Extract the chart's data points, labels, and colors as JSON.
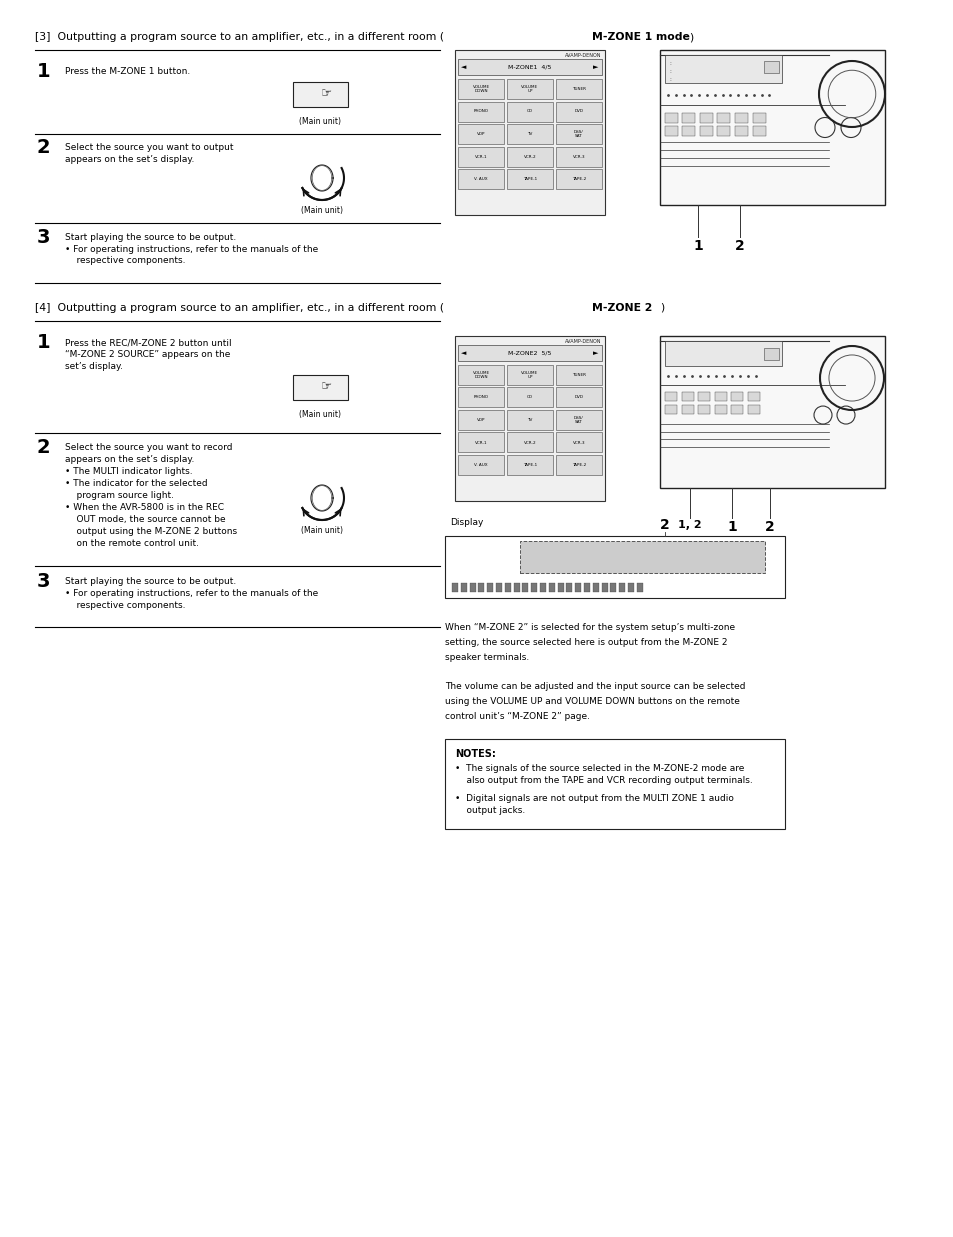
{
  "page_bg": "#ffffff",
  "page_width": 9.54,
  "page_height": 12.37,
  "section1_heading_bold": "[3]  Outputting a program source to an amplifier, etc., in a different room (",
  "section1_heading_part2": "M-ZONE 1 mode",
  "section1_heading_part3": ")",
  "section1_heading": "[3]  Outputting a program source to an amplifier, etc., in a different room (M-ZONE 1 mode)",
  "section2_heading": "[4]  Outputting a program source to an amplifier, etc., in a different room (M-ZONE 2)",
  "s1_step1_num": "1",
  "s1_step1_text": "Press the M-ZONE 1 button.",
  "s1_step1_sub": "(Main unit)",
  "s1_step2_num": "2",
  "s1_step2_line1": "Select the source you want to output",
  "s1_step2_line2": "appears on the set’s display.",
  "s1_step2_sub": "(Main unit)",
  "s1_step3_num": "3",
  "s1_step3_line1": "Start playing the source to be output.",
  "s1_step3_bullet": "• For operating instructions, refer to the manuals of the",
  "s1_step3_bullet2": "    respective components.",
  "s2_step1_num": "1",
  "s2_step1_line1": "Press the REC/M-ZONE 2 button until",
  "s2_step1_line2": "“M-ZONE 2 SOURCE” appears on the",
  "s2_step1_line3": "set’s display.",
  "s2_step1_sub": "(Main unit)",
  "s2_step2_num": "2",
  "s2_step2_line1": "Select the source you want to record",
  "s2_step2_line2": "appears on the set’s display.",
  "s2_step2_b1": "• The MULTI indicator lights.",
  "s2_step2_b2": "• The indicator for the selected",
  "s2_step2_b3": "    program source light.",
  "s2_step2_b4": "• When the AVR-5800 is in the REC",
  "s2_step2_b5": "    OUT mode, the source cannot be",
  "s2_step2_b6": "    output using the M-ZONE 2 buttons",
  "s2_step2_b7": "    on the remote control unit.",
  "s2_step2_sub": "(Main unit)",
  "s2_step3_num": "3",
  "s2_step3_line1": "Start playing the source to be output.",
  "s2_step3_bullet": "• For operating instructions, refer to the manuals of the",
  "s2_step3_bullet2": "    respective components.",
  "display_label": "Display",
  "display_num": "2",
  "para1": "When “M-ZONE 2” is selected for the system setup’s multi-zone",
  "para2": "setting, the source selected here is output from the M-ZONE 2",
  "para3": "speaker terminals.",
  "para4": "The volume can be adjusted and the input source can be selected",
  "para5": "using the VOLUME UP and VOLUME DOWN buttons on the remote",
  "para6": "control unit’s “M-ZONE 2” page.",
  "notes_title": "NOTES:",
  "note1": "•  The signals of the source selected in the M-ZONE-2 mode are",
  "note1b": "    also output from the TAPE and VCR recording output terminals.",
  "note2": "•  Digital signals are not output from the MULTI ZONE 1 audio",
  "note2b": "    output jacks.",
  "remote1_page": "M-ZONE1  4/5",
  "remote2_page": "M-ZONE2  5/5",
  "btn_labels": [
    [
      "VOLUME\nDOWN",
      "VOLUME\nUP",
      "TUNER"
    ],
    [
      "PHONO",
      "CD",
      "DVD"
    ],
    [
      "VDP",
      "TV",
      "DSS/\nSAT"
    ],
    [
      "VCR-1",
      "VCR-2",
      "VCR-3"
    ],
    [
      "V. AUX",
      "TAPE-1",
      "TAPE-2"
    ]
  ]
}
